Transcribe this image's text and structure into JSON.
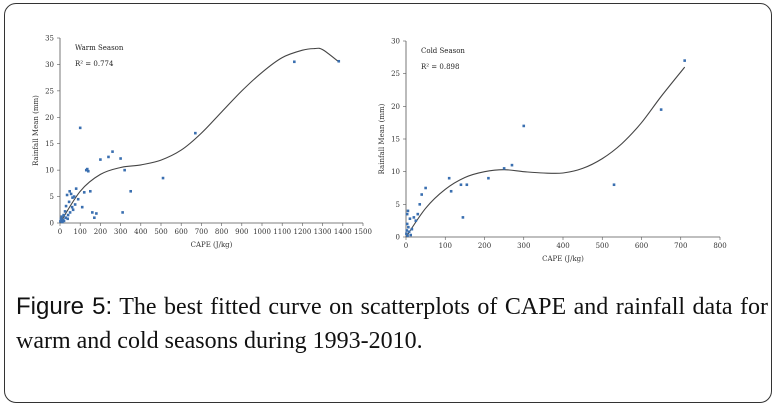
{
  "caption": {
    "label": "Figure 5:",
    "text": " The best fitted curve on scatterplots of CAPE and rainfall data for warm and cold seasons during 1993-2010."
  },
  "colors": {
    "points": "#3a6fb0",
    "curve": "#444444",
    "axis": "#555555"
  },
  "chart_data": [
    {
      "type": "scatter",
      "title": "Warm Season",
      "annotation": "R² = 0.774",
      "xlabel": "CAPE (J/kg)",
      "ylabel": "Rainfall Mean (mm)",
      "xlim": [
        0,
        1500
      ],
      "ylim": [
        0,
        35
      ],
      "xticks": [
        0,
        100,
        200,
        300,
        400,
        500,
        600,
        700,
        800,
        900,
        1000,
        1100,
        1200,
        1300,
        1400,
        1500
      ],
      "yticks": [
        0,
        5,
        10,
        15,
        20,
        25,
        30,
        35
      ],
      "grid": false,
      "points": [
        [
          2,
          0.3
        ],
        [
          5,
          0.8
        ],
        [
          8,
          1.2
        ],
        [
          10,
          0.5
        ],
        [
          12,
          0.2
        ],
        [
          15,
          0.6
        ],
        [
          18,
          1.5
        ],
        [
          20,
          0.4
        ],
        [
          25,
          2.2
        ],
        [
          28,
          1.0
        ],
        [
          30,
          3.2
        ],
        [
          35,
          5.3
        ],
        [
          38,
          0.8
        ],
        [
          40,
          1.5
        ],
        [
          45,
          4.0
        ],
        [
          48,
          6.0
        ],
        [
          50,
          2.0
        ],
        [
          55,
          5.5
        ],
        [
          60,
          3.0
        ],
        [
          62,
          4.8
        ],
        [
          65,
          2.5
        ],
        [
          70,
          5.0
        ],
        [
          75,
          3.5
        ],
        [
          80,
          6.5
        ],
        [
          90,
          4.5
        ],
        [
          100,
          18.0
        ],
        [
          110,
          3.0
        ],
        [
          120,
          5.8
        ],
        [
          130,
          10.0
        ],
        [
          135,
          10.2
        ],
        [
          140,
          9.8
        ],
        [
          150,
          6.0
        ],
        [
          160,
          2.0
        ],
        [
          170,
          1.0
        ],
        [
          180,
          1.8
        ],
        [
          200,
          12.0
        ],
        [
          240,
          12.5
        ],
        [
          260,
          13.5
        ],
        [
          300,
          12.2
        ],
        [
          310,
          2.0
        ],
        [
          320,
          10.0
        ],
        [
          350,
          6.0
        ],
        [
          510,
          8.5
        ],
        [
          670,
          17.0
        ],
        [
          1160,
          30.5
        ],
        [
          1380,
          30.6
        ]
      ],
      "curve": [
        [
          0,
          0
        ],
        [
          100,
          6.0
        ],
        [
          200,
          9.2
        ],
        [
          300,
          10.5
        ],
        [
          400,
          11.0
        ],
        [
          500,
          11.9
        ],
        [
          600,
          13.8
        ],
        [
          700,
          17.0
        ],
        [
          800,
          21.0
        ],
        [
          900,
          25.0
        ],
        [
          1000,
          28.5
        ],
        [
          1100,
          31.3
        ],
        [
          1200,
          32.7
        ],
        [
          1260,
          33.0
        ],
        [
          1300,
          32.8
        ],
        [
          1380,
          30.5
        ]
      ]
    },
    {
      "type": "scatter",
      "title": "Cold Season",
      "annotation": "R² = 0.898",
      "xlabel": "CAPE (J/kg)",
      "ylabel": "Rainfall Mean (mm)",
      "xlim": [
        0,
        800
      ],
      "ylim": [
        0,
        30
      ],
      "xticks": [
        0,
        100,
        200,
        300,
        400,
        500,
        600,
        700,
        800
      ],
      "yticks": [
        0,
        5,
        10,
        15,
        20,
        25,
        30
      ],
      "grid": false,
      "points": [
        [
          1,
          0.5
        ],
        [
          2,
          1.0
        ],
        [
          3,
          2.0
        ],
        [
          3,
          3.5
        ],
        [
          4,
          0.2
        ],
        [
          5,
          4.0
        ],
        [
          6,
          1.5
        ],
        [
          8,
          0.8
        ],
        [
          10,
          2.8
        ],
        [
          12,
          0.3
        ],
        [
          15,
          1.2
        ],
        [
          20,
          3.0
        ],
        [
          25,
          2.5
        ],
        [
          30,
          3.5
        ],
        [
          35,
          5.0
        ],
        [
          40,
          6.5
        ],
        [
          50,
          7.5
        ],
        [
          110,
          9.0
        ],
        [
          115,
          7.0
        ],
        [
          140,
          8.0
        ],
        [
          145,
          3.0
        ],
        [
          155,
          8.0
        ],
        [
          210,
          9.0
        ],
        [
          250,
          10.5
        ],
        [
          270,
          11.0
        ],
        [
          300,
          17.0
        ],
        [
          530,
          8.0
        ],
        [
          650,
          19.5
        ],
        [
          710,
          27.0
        ]
      ],
      "curve": [
        [
          0,
          0
        ],
        [
          50,
          4.4
        ],
        [
          100,
          7.3
        ],
        [
          150,
          9.1
        ],
        [
          200,
          10.0
        ],
        [
          250,
          10.3
        ],
        [
          300,
          10.0
        ],
        [
          350,
          9.8
        ],
        [
          400,
          9.8
        ],
        [
          450,
          10.5
        ],
        [
          500,
          12.0
        ],
        [
          550,
          14.3
        ],
        [
          600,
          17.5
        ],
        [
          650,
          21.5
        ],
        [
          710,
          26.0
        ]
      ]
    }
  ]
}
